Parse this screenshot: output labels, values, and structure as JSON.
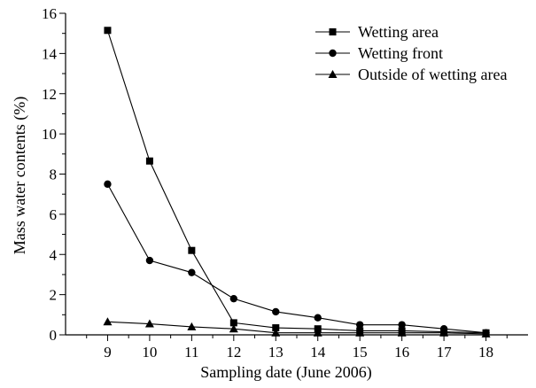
{
  "chart_data": {
    "type": "line",
    "title": "",
    "xlabel": "Sampling date (June 2006)",
    "ylabel": "Mass water contents (%)",
    "x": [
      9,
      10,
      11,
      12,
      13,
      14,
      15,
      16,
      17,
      18
    ],
    "xlim": [
      8,
      19
    ],
    "ylim": [
      0,
      16
    ],
    "yticks": [
      0,
      2,
      4,
      6,
      8,
      10,
      12,
      14,
      16
    ],
    "grid": false,
    "legend_position": "top-right",
    "series": [
      {
        "name": "Wetting area",
        "marker": "square",
        "values": [
          15.15,
          8.65,
          4.2,
          0.6,
          0.35,
          0.3,
          0.2,
          0.2,
          0.15,
          0.1
        ]
      },
      {
        "name": "Wetting front",
        "marker": "circle",
        "values": [
          7.5,
          3.7,
          3.1,
          1.8,
          1.15,
          0.85,
          0.5,
          0.5,
          0.3,
          0.1
        ]
      },
      {
        "name": "Outside of wetting area",
        "marker": "triangle",
        "values": [
          0.65,
          0.55,
          0.4,
          0.3,
          0.1,
          0.1,
          0.1,
          0.1,
          0.1,
          0.05
        ]
      }
    ]
  }
}
